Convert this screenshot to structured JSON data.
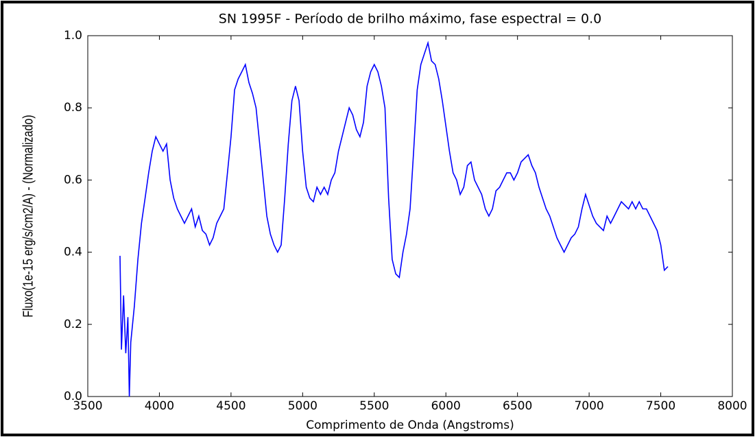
{
  "chart_data": {
    "type": "line",
    "title": "SN 1995F - Período de brilho máximo, fase espectral = 0.0",
    "xlabel": "Comprimento de Onda (Angstroms)",
    "ylabel": "Fluxo(1e-15 erg/s/cm2/A) - (Normalizado)",
    "x": [
      3725,
      3735,
      3750,
      3765,
      3780,
      3790,
      3800,
      3825,
      3850,
      3875,
      3900,
      3925,
      3950,
      3975,
      4000,
      4025,
      4050,
      4075,
      4100,
      4125,
      4150,
      4175,
      4200,
      4225,
      4250,
      4275,
      4300,
      4325,
      4350,
      4375,
      4400,
      4425,
      4450,
      4475,
      4500,
      4525,
      4550,
      4575,
      4600,
      4625,
      4650,
      4675,
      4700,
      4725,
      4750,
      4775,
      4800,
      4825,
      4850,
      4875,
      4900,
      4925,
      4950,
      4975,
      5000,
      5025,
      5050,
      5075,
      5100,
      5125,
      5150,
      5175,
      5200,
      5225,
      5250,
      5275,
      5300,
      5325,
      5350,
      5375,
      5400,
      5425,
      5450,
      5475,
      5500,
      5525,
      5550,
      5575,
      5600,
      5625,
      5650,
      5675,
      5700,
      5725,
      5750,
      5775,
      5800,
      5825,
      5850,
      5875,
      5900,
      5925,
      5950,
      5975,
      6000,
      6025,
      6050,
      6075,
      6100,
      6125,
      6150,
      6175,
      6200,
      6225,
      6250,
      6275,
      6300,
      6325,
      6350,
      6375,
      6400,
      6425,
      6450,
      6475,
      6500,
      6525,
      6550,
      6575,
      6600,
      6625,
      6650,
      6675,
      6700,
      6725,
      6750,
      6775,
      6800,
      6825,
      6850,
      6875,
      6900,
      6925,
      6950,
      6975,
      7000,
      7025,
      7050,
      7075,
      7100,
      7125,
      7150,
      7175,
      7200,
      7225,
      7250,
      7275,
      7300,
      7325,
      7350,
      7375,
      7400,
      7425,
      7450,
      7475,
      7500,
      7525,
      7550
    ],
    "series": [
      {
        "color": "#0000ff",
        "values": [
          0.39,
          0.13,
          0.28,
          0.12,
          0.22,
          0.0,
          0.15,
          0.25,
          0.38,
          0.48,
          0.55,
          0.62,
          0.68,
          0.72,
          0.7,
          0.68,
          0.7,
          0.6,
          0.55,
          0.52,
          0.5,
          0.48,
          0.5,
          0.52,
          0.47,
          0.5,
          0.46,
          0.45,
          0.42,
          0.44,
          0.48,
          0.5,
          0.52,
          0.62,
          0.72,
          0.85,
          0.88,
          0.9,
          0.92,
          0.87,
          0.84,
          0.8,
          0.7,
          0.6,
          0.5,
          0.45,
          0.42,
          0.4,
          0.42,
          0.55,
          0.7,
          0.82,
          0.86,
          0.82,
          0.68,
          0.58,
          0.55,
          0.54,
          0.58,
          0.56,
          0.58,
          0.56,
          0.6,
          0.62,
          0.68,
          0.72,
          0.76,
          0.8,
          0.78,
          0.74,
          0.72,
          0.76,
          0.86,
          0.9,
          0.92,
          0.9,
          0.86,
          0.8,
          0.55,
          0.38,
          0.34,
          0.33,
          0.4,
          0.45,
          0.52,
          0.68,
          0.85,
          0.92,
          0.95,
          0.98,
          0.93,
          0.92,
          0.88,
          0.82,
          0.75,
          0.68,
          0.62,
          0.6,
          0.56,
          0.58,
          0.64,
          0.65,
          0.6,
          0.58,
          0.56,
          0.52,
          0.5,
          0.52,
          0.57,
          0.58,
          0.6,
          0.62,
          0.62,
          0.6,
          0.62,
          0.65,
          0.66,
          0.67,
          0.64,
          0.62,
          0.58,
          0.55,
          0.52,
          0.5,
          0.47,
          0.44,
          0.42,
          0.4,
          0.42,
          0.44,
          0.45,
          0.47,
          0.52,
          0.56,
          0.53,
          0.5,
          0.48,
          0.47,
          0.46,
          0.5,
          0.48,
          0.5,
          0.52,
          0.54,
          0.53,
          0.52,
          0.54,
          0.52,
          0.54,
          0.52,
          0.52,
          0.5,
          0.48,
          0.46,
          0.42,
          0.35,
          0.36
        ]
      }
    ],
    "xlim": [
      3500,
      8000
    ],
    "xticks": [
      3500,
      4000,
      4500,
      5000,
      5500,
      6000,
      6500,
      7000,
      7500,
      8000
    ],
    "ylim": [
      0,
      1
    ],
    "yticks": [
      {
        "value": 0,
        "label": "0.0"
      },
      0.2,
      0.4,
      0.6,
      0.8,
      {
        "value": 1,
        "label": "1.0"
      }
    ]
  }
}
